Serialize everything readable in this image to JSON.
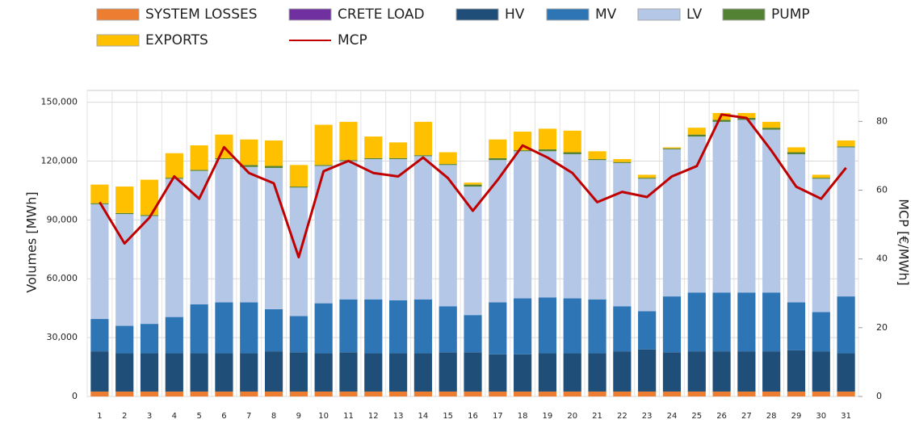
{
  "chart_data": {
    "type": "bar",
    "stacked": true,
    "categories": [
      "1",
      "2",
      "3",
      "4",
      "5",
      "6",
      "7",
      "8",
      "9",
      "10",
      "11",
      "12",
      "13",
      "14",
      "15",
      "16",
      "17",
      "18",
      "19",
      "20",
      "21",
      "22",
      "23",
      "24",
      "25",
      "26",
      "27",
      "28",
      "29",
      "30",
      "31"
    ],
    "y_label": "Volumes [MWh]",
    "y2_label": "MCP [€/MWh]",
    "ylim": [
      0,
      156000
    ],
    "yticks": [
      0,
      {
        "value": 30000,
        "label": "30,000"
      },
      {
        "value": 60000,
        "label": "60,000"
      },
      {
        "value": 90000,
        "label": "90,000"
      },
      {
        "value": 120000,
        "label": "120,000"
      },
      {
        "value": 150000,
        "label": "150,000"
      }
    ],
    "y2lim": [
      0,
      89
    ],
    "y2ticks": [
      0,
      20,
      40,
      60,
      80
    ],
    "grid": true,
    "series": [
      {
        "name": "SYSTEM LOSSES",
        "color": "#ed7d31",
        "values": [
          2500,
          2500,
          2500,
          2500,
          2500,
          2500,
          2500,
          2500,
          2500,
          2500,
          2500,
          2500,
          2500,
          2500,
          2500,
          2500,
          2500,
          2500,
          2500,
          2500,
          2500,
          2500,
          2500,
          2500,
          2500,
          2500,
          2500,
          2500,
          2500,
          2500,
          2500
        ]
      },
      {
        "name": "CRETE LOAD",
        "color": "#7030a0",
        "values": [
          0,
          0,
          0,
          0,
          0,
          0,
          0,
          0,
          0,
          0,
          0,
          0,
          0,
          0,
          0,
          0,
          0,
          0,
          0,
          0,
          0,
          0,
          0,
          0,
          0,
          0,
          0,
          0,
          0,
          0,
          0
        ]
      },
      {
        "name": "HV",
        "color": "#1f4e79",
        "values": [
          20500,
          19500,
          19500,
          19500,
          19500,
          19500,
          19500,
          20500,
          20000,
          19500,
          20000,
          19500,
          19500,
          19500,
          20000,
          20000,
          19000,
          19000,
          19500,
          19500,
          19500,
          20500,
          21500,
          20000,
          20500,
          20500,
          20500,
          20500,
          21000,
          20500,
          19500
        ]
      },
      {
        "name": "MV",
        "color": "#2e75b6",
        "values": [
          16500,
          14000,
          15000,
          18500,
          25000,
          26000,
          26000,
          21500,
          18500,
          25500,
          27000,
          27500,
          27000,
          27500,
          23500,
          19000,
          26500,
          28500,
          28500,
          28000,
          27500,
          23000,
          19500,
          28500,
          30000,
          30000,
          30000,
          30000,
          24500,
          20000,
          29000
        ]
      },
      {
        "name": "LV",
        "color": "#b4c7e7",
        "values": [
          58500,
          57000,
          55000,
          70500,
          68000,
          73000,
          69000,
          72000,
          65500,
          70000,
          70500,
          71500,
          72000,
          73000,
          72000,
          65500,
          72500,
          75000,
          74500,
          73500,
          71000,
          73000,
          67500,
          75000,
          79500,
          87000,
          88000,
          83000,
          75500,
          68000,
          76000
        ]
      },
      {
        "name": "PUMP",
        "color": "#548235",
        "values": [
          500,
          500,
          500,
          500,
          500,
          500,
          1000,
          1000,
          500,
          500,
          500,
          500,
          500,
          500,
          500,
          1000,
          1000,
          500,
          1000,
          1000,
          500,
          500,
          500,
          500,
          1000,
          1000,
          1000,
          1000,
          1000,
          500,
          500
        ]
      },
      {
        "name": "EXPORTS",
        "color": "#ffc000",
        "values": [
          9500,
          13500,
          18000,
          12500,
          12500,
          12000,
          13000,
          13000,
          11000,
          20500,
          19500,
          11000,
          8000,
          17000,
          6000,
          1000,
          9500,
          9500,
          10500,
          11000,
          4000,
          1500,
          1500,
          500,
          3500,
          3500,
          2500,
          3000,
          2500,
          1500,
          3000
        ]
      },
      {
        "name": "MCP",
        "color": "#c00000",
        "type": "line",
        "axis": "y2",
        "values": [
          56.5,
          44.5,
          52,
          64,
          57.5,
          72.5,
          65,
          62,
          40.5,
          65.5,
          68.5,
          65,
          64,
          69.5,
          63.5,
          54,
          63,
          73,
          69.5,
          65,
          56.5,
          59.5,
          58,
          64,
          67,
          82,
          81,
          71.5,
          61,
          57.5,
          66.5
        ]
      }
    ]
  }
}
